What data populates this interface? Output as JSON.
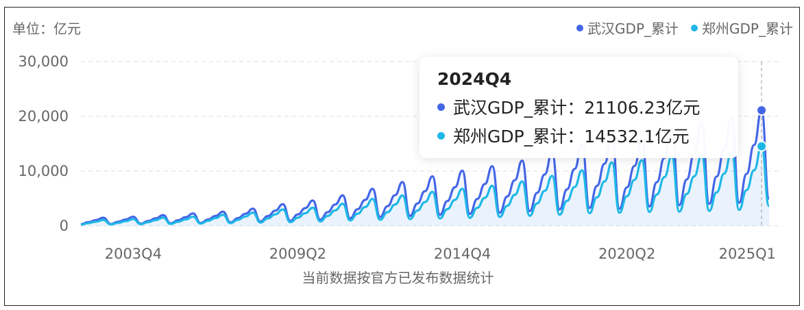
{
  "header": {
    "unit_label": "单位：亿元"
  },
  "colors": {
    "wuhan": "#4466e6",
    "zhengzhou": "#1fb8e6",
    "axis_text": "#666666",
    "grid": "#dddddd"
  },
  "tooltip": {
    "title": "2024Q4",
    "rows": [
      {
        "label": "武汉GDP_累计：",
        "value": "21106.23亿元"
      },
      {
        "label": "郑州GDP_累计：",
        "value": "14532.1亿元"
      }
    ]
  },
  "footnote": "当前数据按官方已发布数据统计",
  "chart_data": {
    "type": "line",
    "title": "",
    "xlabel": "",
    "ylabel": "单位：亿元",
    "ylim": [
      0,
      30000
    ],
    "yticks": [
      "30,000",
      "20,000",
      "10,000",
      "0"
    ],
    "ytick_values": [
      30000,
      20000,
      10000,
      0
    ],
    "xtick_labels": [
      "2003Q4",
      "2009Q2",
      "2014Q4",
      "2020Q2",
      "2025Q1"
    ],
    "grid": true,
    "legend_position": "top-right",
    "highlight": "2024Q4",
    "series": [
      {
        "name": "武汉GDP_累计",
        "color": "#4466e6",
        "q4_values": {
          "2002": 1490,
          "2003": 1662,
          "2004": 1956,
          "2005": 2261,
          "2006": 2590,
          "2007": 3142,
          "2008": 3960,
          "2009": 4620,
          "2010": 5566,
          "2011": 6762,
          "2012": 8004,
          "2013": 9051,
          "2014": 10069,
          "2015": 10906,
          "2016": 11913,
          "2017": 13410,
          "2018": 14847,
          "2019": 16223,
          "2020": 15616,
          "2021": 17717,
          "2022": 18866,
          "2023": 20012,
          "2024": 21106.23
        },
        "q1_2025": 4958
      },
      {
        "name": "郑州GDP_累计",
        "color": "#1fb8e6",
        "q4_values": {
          "2002": 1071,
          "2003": 1220,
          "2004": 1502,
          "2005": 1660,
          "2006": 2014,
          "2007": 2421,
          "2008": 3004,
          "2009": 3309,
          "2010": 4041,
          "2011": 4913,
          "2012": 5550,
          "2013": 6202,
          "2014": 6777,
          "2015": 7312,
          "2016": 8114,
          "2017": 9130,
          "2018": 10143,
          "2019": 11590,
          "2020": 12003,
          "2021": 12691,
          "2022": 12935,
          "2023": 13617,
          "2024": 14532.1
        },
        "q1_2025": 3627
      }
    ]
  }
}
